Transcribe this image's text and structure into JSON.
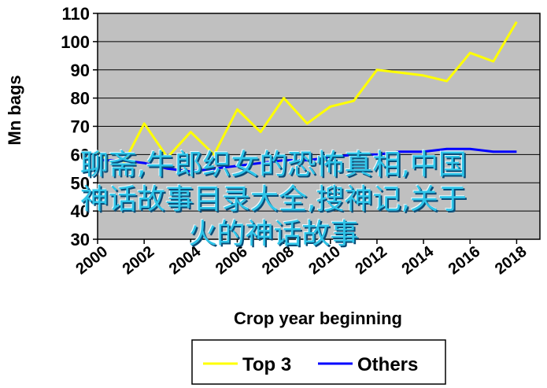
{
  "chart_data": {
    "type": "line",
    "xlabel": "Crop year beginning",
    "ylabel": "Mn bags",
    "ylim": [
      30,
      110
    ],
    "yticks": [
      110,
      100,
      90,
      80,
      70,
      60,
      50,
      40,
      30
    ],
    "xlim": [
      2000,
      2019
    ],
    "xticks": [
      2000,
      2002,
      2004,
      2006,
      2008,
      2010,
      2012,
      2014,
      2016,
      2018
    ],
    "legend_position": "bottom",
    "grid": "horizontal",
    "plot_background": "#c0c0c0",
    "series": [
      {
        "name": "Top 3",
        "color": "#ffff00",
        "x": [
          2000,
          2001,
          2002,
          2003,
          2004,
          2005,
          2006,
          2007,
          2008,
          2009,
          2010,
          2011,
          2012,
          2013,
          2014,
          2015,
          2016,
          2017,
          2018,
          2019
        ],
        "y": [
          61,
          55,
          71,
          59,
          68,
          60,
          76,
          68,
          80,
          71,
          77,
          79,
          90,
          89,
          88,
          86,
          96,
          93,
          107,
          null
        ]
      },
      {
        "name": "Others",
        "color": "#0000ff",
        "x": [
          2000,
          2001,
          2002,
          2003,
          2004,
          2005,
          2006,
          2007,
          2008,
          2009,
          2010,
          2011,
          2012,
          2013,
          2014,
          2015,
          2016,
          2017,
          2018,
          2019
        ],
        "y": [
          58,
          58,
          57,
          55,
          54,
          55,
          56,
          57,
          58,
          58,
          59,
          60,
          60,
          61,
          61,
          62,
          62,
          61,
          61,
          null
        ]
      }
    ]
  },
  "overlay": {
    "lines": [
      "聊斋,牛郎织女的恐怖真相,中国",
      "神话故事目录大全,搜神记,关于",
      "火的神话故事"
    ]
  }
}
